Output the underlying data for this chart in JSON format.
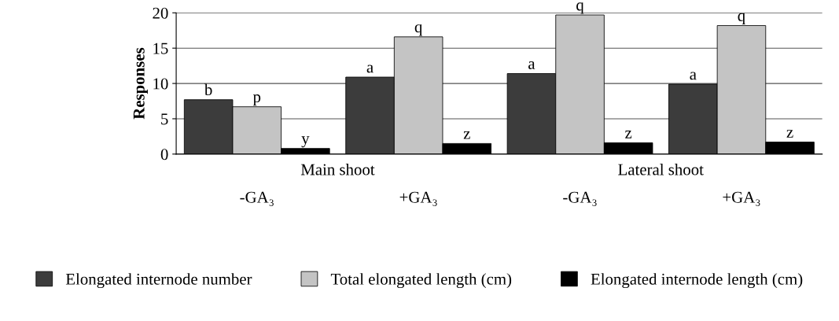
{
  "chart_data": {
    "type": "bar",
    "ylabel": "Responses",
    "categories": [
      "-GA₃",
      "+GA₃",
      "-GA₃",
      "+GA₃"
    ],
    "series": [
      {
        "name": "Elongated internode number",
        "color": "#3c3c3c",
        "values": [
          7.7,
          10.9,
          11.4,
          9.9
        ],
        "value_labels": [
          "b",
          "a",
          "a",
          "a"
        ]
      },
      {
        "name": "Total elongated length (cm)",
        "color": "#c4c4c4",
        "values": [
          6.7,
          16.6,
          19.7,
          18.2
        ],
        "value_labels": [
          "p",
          "q",
          "q",
          "q"
        ]
      },
      {
        "name": "Elongated internode length (cm)",
        "color": "#000000",
        "values": [
          0.8,
          1.5,
          1.6,
          1.7
        ],
        "value_labels": [
          "y",
          "z",
          "z",
          "z"
        ]
      }
    ],
    "annotations": [
      "Main shoot",
      "Lateral shoot"
    ],
    "ylim": [
      0,
      20
    ],
    "yticks": [
      0,
      5,
      10,
      15,
      20
    ],
    "grid": "y",
    "legend": "bottom"
  }
}
